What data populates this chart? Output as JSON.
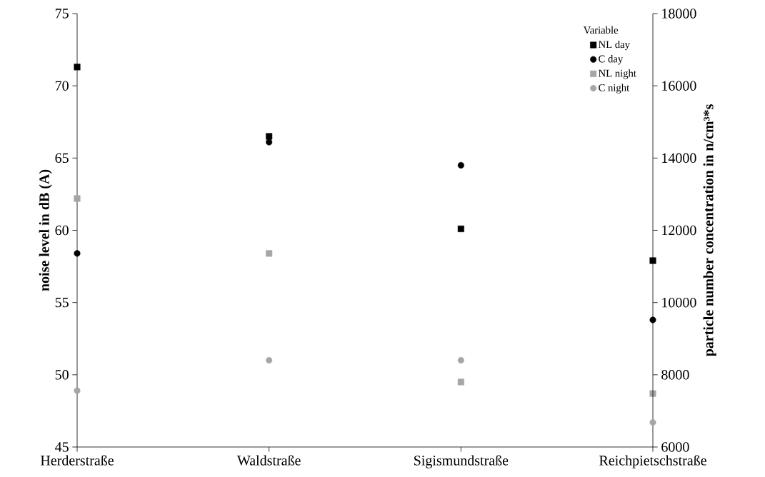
{
  "chart_data": {
    "type": "scatter",
    "categories": [
      "Herderstraße",
      "Waldstraße",
      "Sigismundstraße",
      "Reichpietschstraße"
    ],
    "ylabel": "noise level in dB (A)",
    "y2label": "particle number concentration in n/cm³*s",
    "legend_title": "Variable",
    "legend": "top right",
    "ylim": [
      45,
      75
    ],
    "yticks": [
      45,
      50,
      55,
      60,
      65,
      70,
      75
    ],
    "y2lim": [
      6000,
      18000
    ],
    "y2ticks": [
      6000,
      8000,
      10000,
      12000,
      14000,
      16000,
      18000
    ],
    "series": [
      {
        "name": "NL day",
        "color": "#000000",
        "marker": "square",
        "values": [
          71.3,
          66.5,
          60.1,
          57.9
        ]
      },
      {
        "name": "C day",
        "color": "#000000",
        "marker": "circle",
        "axis": "y2",
        "values": [
          11360,
          14440,
          13800,
          9520
        ]
      },
      {
        "name": "NL night",
        "color": "#a6a6a6",
        "marker": "square",
        "values": [
          62.2,
          58.4,
          49.5,
          48.7
        ]
      },
      {
        "name": "C night",
        "color": "#a6a6a6",
        "marker": "circle",
        "axis": "y2",
        "values": [
          7560,
          8400,
          8400,
          6680
        ]
      }
    ]
  }
}
